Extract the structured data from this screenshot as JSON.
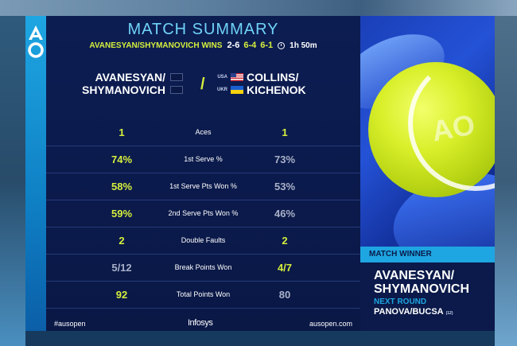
{
  "header": {
    "title": "MATCH SUMMARY",
    "winner_line": "AVANESYAN/SHYMANOVICH WINS",
    "sets": [
      {
        "score": "2-6",
        "won": false
      },
      {
        "score": "6-4",
        "won": true
      },
      {
        "score": "6-1",
        "won": true
      }
    ],
    "duration": "1h 50m"
  },
  "teams": {
    "left": {
      "line1": "AVANESYAN/",
      "line2": "SHYMANOVICH"
    },
    "separator": "/",
    "right": {
      "line1": "COLLINS/",
      "line2": "KICHENOK",
      "country1": "USA",
      "country2": "UKR"
    }
  },
  "stats": [
    {
      "label": "Aces",
      "left": "1",
      "right": "1",
      "left_hl": true,
      "right_hl": true
    },
    {
      "label": "1st Serve %",
      "left": "74%",
      "right": "73%",
      "left_hl": true,
      "right_hl": false
    },
    {
      "label": "1st Serve Pts Won %",
      "left": "58%",
      "right": "53%",
      "left_hl": true,
      "right_hl": false
    },
    {
      "label": "2nd Serve Pts Won %",
      "left": "59%",
      "right": "46%",
      "left_hl": true,
      "right_hl": false
    },
    {
      "label": "Double Faults",
      "left": "2",
      "right": "2",
      "left_hl": true,
      "right_hl": true
    },
    {
      "label": "Break Points Won",
      "left": "5/12",
      "right": "4/7",
      "left_hl": false,
      "right_hl": true
    },
    {
      "label": "Total Points Won",
      "left": "92",
      "right": "80",
      "left_hl": true,
      "right_hl": false
    }
  ],
  "footer": {
    "hashtag": "#ausopen",
    "sponsor": "Infosys",
    "site": "ausopen.com"
  },
  "winner_panel": {
    "bar_label": "MATCH WINNER",
    "name_line1": "AVANESYAN/",
    "name_line2": "SHYMANOVICH",
    "next_round_label": "NEXT ROUND",
    "next_opponent": "PANOVA/BUCSA",
    "next_opponent_seed": "(12)"
  },
  "logo": {
    "text_top": "A",
    "text_bottom": "O"
  },
  "ball_text": "AO",
  "colors": {
    "navy": "#0b1a4a",
    "accent_blue": "#1ea6e2",
    "highlight_yellow": "#d6ef3c",
    "title_cyan": "#6fd3f7"
  }
}
